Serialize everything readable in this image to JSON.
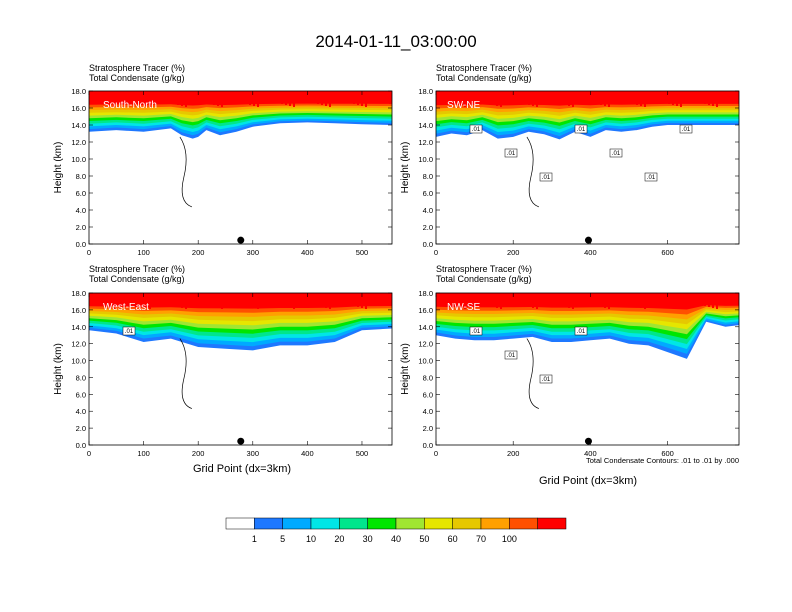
{
  "title": "2014-01-11_03:00:00",
  "panel_top_labels": [
    "Stratosphere Tracer   (%)",
    "Total Condensate   (g/kg)"
  ],
  "ylabel": "Height (km)",
  "xlabel": "Grid Point (dx=3km)",
  "contour_note": "Total Condensate Contours: .01 to .01 by .000",
  "colors": {
    "ticks": [
      "#ffffff",
      "#1e78ff",
      "#00aaff",
      "#00e6e6",
      "#00e68c",
      "#00e600",
      "#a0e632",
      "#e6e600",
      "#e6c800",
      "#ffa000",
      "#ff5000",
      "#ff0000"
    ]
  },
  "colorbar": {
    "colors": [
      "#ffffff",
      "#1e78ff",
      "#00aaff",
      "#00e6e6",
      "#00e68c",
      "#00e600",
      "#a0e632",
      "#e6e600",
      "#e6c800",
      "#ffa000",
      "#ff5000",
      "#ff0000"
    ],
    "labels": [
      "1",
      "5",
      "10",
      "20",
      "30",
      "40",
      "50",
      "60",
      "70",
      "100"
    ]
  },
  "chart_data": [
    {
      "type": "heatmap",
      "name": "South-North",
      "xlim": [
        0,
        555
      ],
      "ylim": [
        0,
        18
      ],
      "xticks": [
        0,
        100,
        200,
        300,
        400,
        500
      ],
      "yticks": [
        "0.0",
        "2.0",
        "4.0",
        "6.0",
        "8.0",
        "10.0",
        "12.0",
        "14.0",
        "16.0",
        "18.0"
      ],
      "marker_x": 278,
      "band": {
        "x": [
          0,
          50,
          100,
          150,
          170,
          190,
          200,
          215,
          240,
          270,
          300,
          350,
          400,
          450,
          500,
          555
        ],
        "bottom": [
          13.2,
          13.4,
          13.2,
          13.6,
          12.8,
          12.4,
          12.6,
          13.4,
          12.8,
          13.2,
          13.8,
          14.2,
          14.3,
          14.2,
          14.1,
          14.0
        ]
      },
      "contour_labels": []
    },
    {
      "type": "heatmap",
      "name": "SW-NE",
      "xlim": [
        0,
        785
      ],
      "ylim": [
        0,
        18
      ],
      "xticks": [
        0,
        200,
        400,
        600
      ],
      "yticks": [
        "0.0",
        "2.0",
        "4.0",
        "6.0",
        "8.0",
        "10.0",
        "12.0",
        "14.0",
        "16.0",
        "18.0"
      ],
      "marker_x": 395,
      "band": {
        "x": [
          0,
          40,
          80,
          120,
          160,
          200,
          240,
          280,
          320,
          360,
          400,
          440,
          480,
          520,
          560,
          600,
          680,
          785
        ],
        "bottom": [
          12.6,
          13.0,
          12.8,
          13.4,
          12.4,
          12.6,
          13.2,
          12.9,
          12.3,
          13.2,
          12.6,
          13.4,
          13.2,
          13.4,
          13.8,
          14.0,
          14.0,
          14.0
        ]
      },
      "contour_labels": [
        ".01",
        ".01",
        ".01",
        ".01",
        ".01",
        ".01",
        ".01"
      ]
    },
    {
      "type": "heatmap",
      "name": "West-East",
      "xlim": [
        0,
        555
      ],
      "ylim": [
        0,
        18
      ],
      "xticks": [
        0,
        100,
        200,
        300,
        400,
        500
      ],
      "yticks": [
        "0.0",
        "2.0",
        "4.0",
        "6.0",
        "8.0",
        "10.0",
        "12.0",
        "14.0",
        "16.0",
        "18.0"
      ],
      "marker_x": 278,
      "band": {
        "x": [
          0,
          50,
          100,
          150,
          200,
          250,
          300,
          350,
          400,
          450,
          500,
          555
        ],
        "bottom": [
          13.6,
          13.2,
          12.2,
          12.6,
          11.6,
          11.4,
          11.2,
          11.8,
          11.8,
          12.2,
          13.6,
          13.8
        ]
      },
      "contour_labels": [
        ".01"
      ]
    },
    {
      "type": "heatmap",
      "name": "NW-SE",
      "xlim": [
        0,
        785
      ],
      "ylim": [
        0,
        18
      ],
      "xticks": [
        0,
        200,
        400,
        600
      ],
      "yticks": [
        "0.0",
        "2.0",
        "4.0",
        "6.0",
        "8.0",
        "10.0",
        "12.0",
        "14.0",
        "16.0",
        "18.0"
      ],
      "marker_x": 395,
      "band": {
        "x": [
          0,
          50,
          100,
          150,
          200,
          250,
          300,
          350,
          400,
          450,
          500,
          550,
          600,
          650,
          700,
          750,
          785
        ],
        "bottom": [
          13.0,
          12.6,
          12.4,
          12.4,
          12.6,
          12.8,
          12.2,
          12.2,
          12.4,
          12.6,
          12.0,
          11.8,
          11.0,
          10.2,
          14.6,
          14.0,
          14.2
        ]
      },
      "contour_labels": [
        ".01",
        ".01",
        ".01",
        ".01"
      ]
    }
  ]
}
